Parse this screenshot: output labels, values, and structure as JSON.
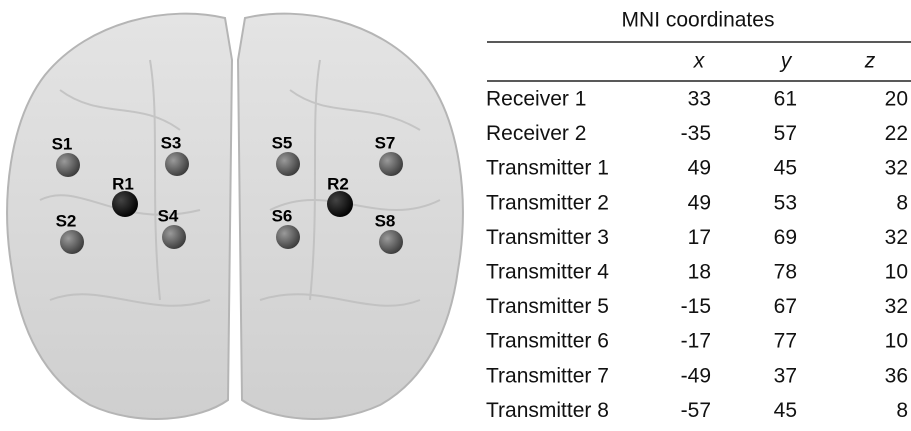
{
  "brain": {
    "labels": [
      "S1",
      "S2",
      "S3",
      "S4",
      "R1",
      "S5",
      "S6",
      "R2",
      "S7",
      "S8"
    ]
  },
  "table": {
    "title": "MNI coordinates",
    "columns": [
      "x",
      "y",
      "z"
    ],
    "rows": [
      [
        "Receiver 1",
        33,
        61,
        20
      ],
      [
        "Receiver 2",
        -35,
        57,
        22
      ],
      [
        "Transmitter 1",
        49,
        45,
        32
      ],
      [
        "Transmitter 2",
        49,
        53,
        8
      ],
      [
        "Transmitter 3",
        17,
        69,
        32
      ],
      [
        "Transmitter 4",
        18,
        78,
        10
      ],
      [
        "Transmitter 5",
        -15,
        67,
        32
      ],
      [
        "Transmitter 6",
        -17,
        77,
        10
      ],
      [
        "Transmitter 7",
        -49,
        37,
        36
      ],
      [
        "Transmitter 8",
        -57,
        45,
        8
      ]
    ]
  }
}
